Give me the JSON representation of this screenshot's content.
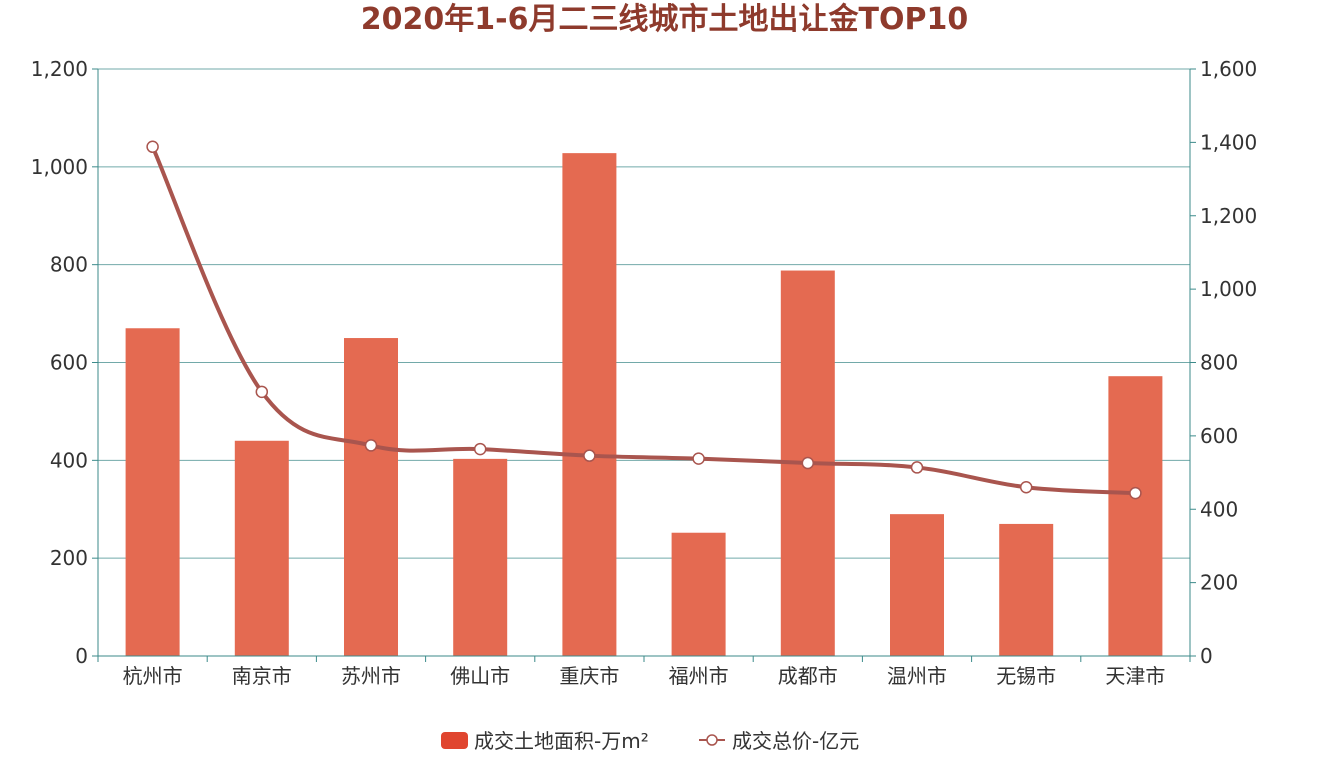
{
  "chart_data": {
    "type": "bar",
    "title": "2020年1-6月二三线城市土地出让金TOP10",
    "categories": [
      "杭州市",
      "南京市",
      "苏州市",
      "佛山市",
      "重庆市",
      "福州市",
      "成都市",
      "温州市",
      "无锡市",
      "天津市"
    ],
    "series": [
      {
        "name": "成交土地面积-万m²",
        "type": "bar",
        "axis": "left",
        "color": "#e46a51",
        "values": [
          670,
          440,
          650,
          403,
          1028,
          252,
          788,
          290,
          270,
          572
        ]
      },
      {
        "name": "成交总价-亿元",
        "type": "line",
        "axis": "right",
        "color": "#a9554e",
        "values": [
          1388,
          720,
          574,
          564,
          546,
          538,
          526,
          514,
          460,
          444
        ]
      }
    ],
    "y_left": {
      "min": 0,
      "max": 1200,
      "ticks": [
        "0",
        "200",
        "400",
        "600",
        "800",
        "1,000",
        "1,200"
      ]
    },
    "y_right": {
      "min": 0,
      "max": 1600,
      "ticks": [
        "0",
        "200",
        "400",
        "600",
        "800",
        "1,000",
        "1,200",
        "1,400",
        "1,600"
      ]
    },
    "grid": true,
    "legend_position": "bottom"
  }
}
